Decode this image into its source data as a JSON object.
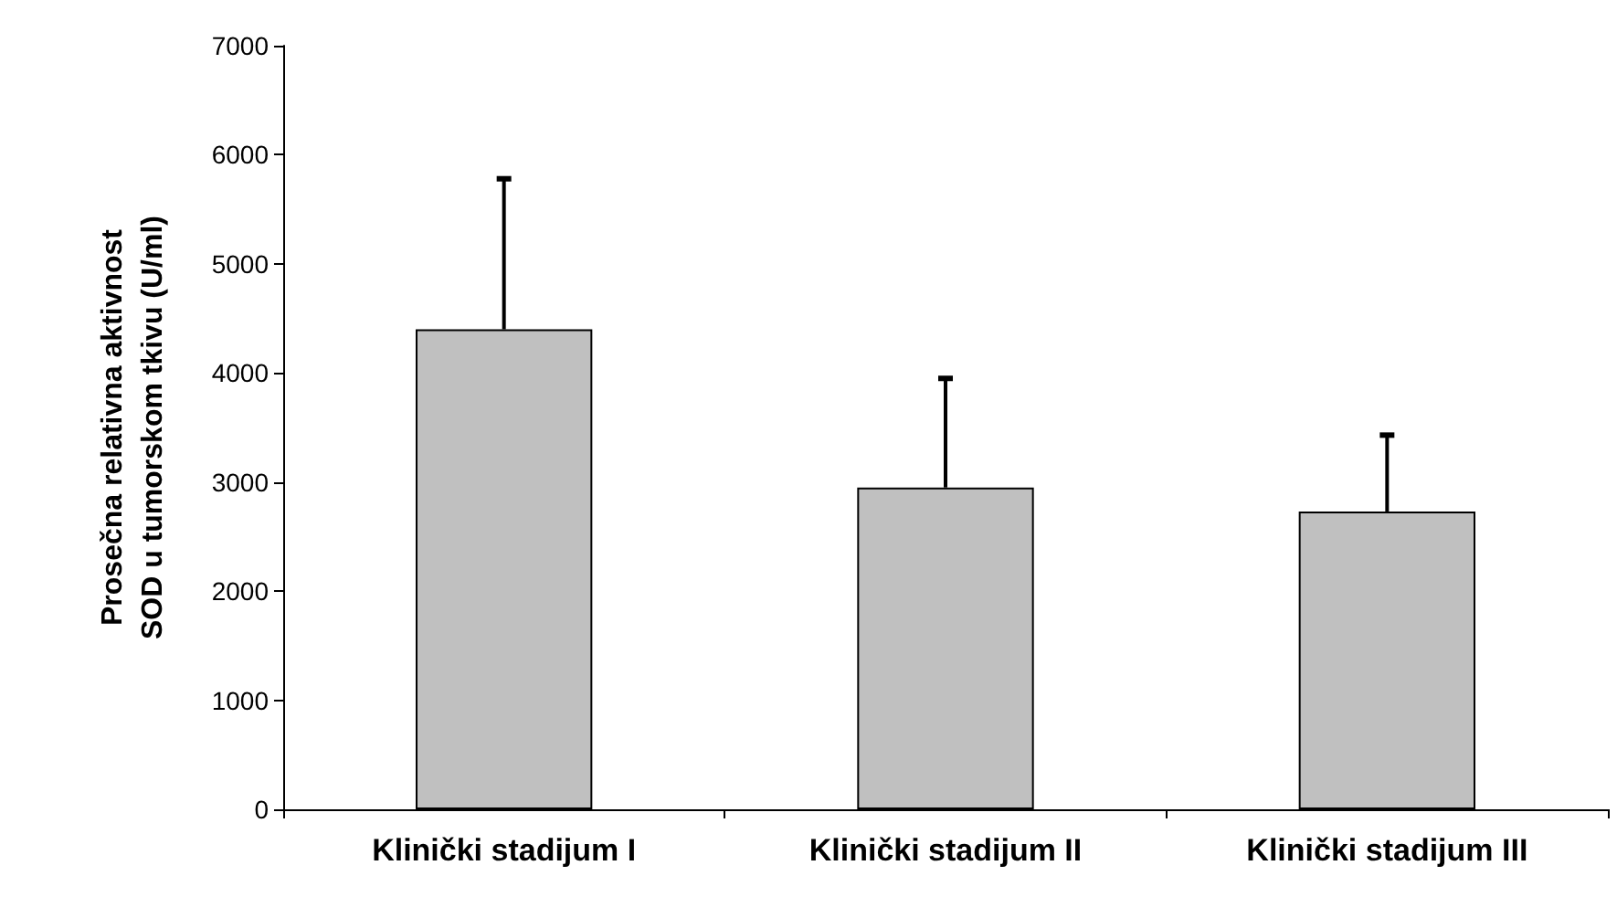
{
  "chart_data": {
    "type": "bar",
    "ylabel": "Prosečna relativna aktivnost\nSOD u tumorskom tkivu (U/ml)",
    "categories": [
      "Klinički stadijum I",
      "Klinički stadijum II",
      "Klinički stadijum III"
    ],
    "values": [
      4400,
      2950,
      2730
    ],
    "errors": [
      [
        4400,
        5780
      ],
      [
        2950,
        3950
      ],
      [
        2730,
        3430
      ]
    ],
    "color": "#c0c0c0",
    "ylim": [
      0,
      7000
    ],
    "yticks": [
      0,
      1000,
      2000,
      3000,
      4000,
      5000,
      6000,
      7000
    ],
    "grid": false
  }
}
